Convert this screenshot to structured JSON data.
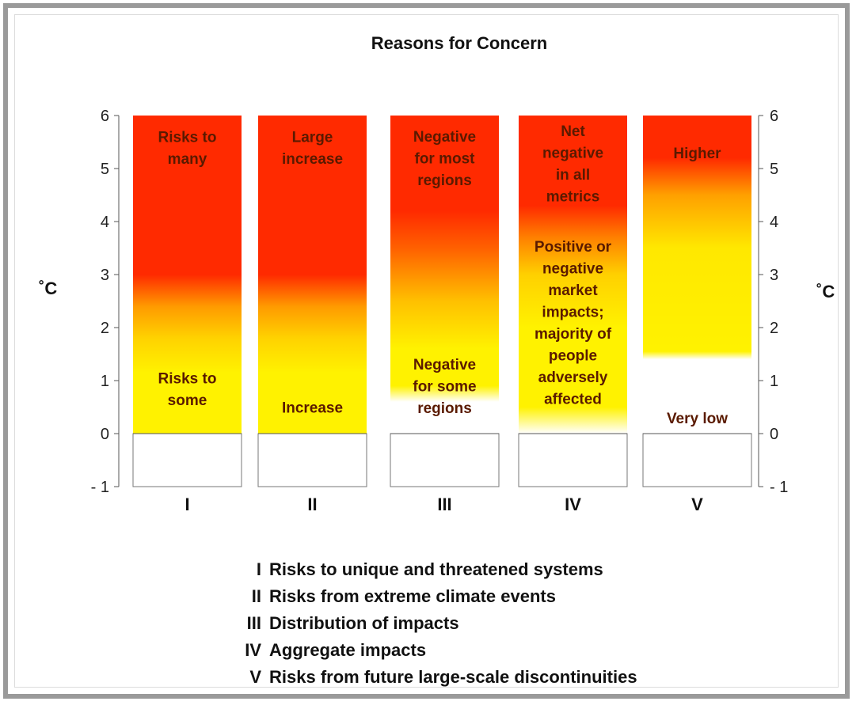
{
  "chart_data": {
    "type": "table",
    "title": "Reasons for Concern",
    "ylabel_left": "˚C",
    "ylabel_right": "˚C",
    "ylim": [
      -1,
      6
    ],
    "yticks": [
      -1,
      0,
      1,
      2,
      3,
      4,
      5,
      6
    ],
    "ytick_labels": [
      "- 1",
      "0",
      "1",
      "2",
      "3",
      "4",
      "5",
      "6"
    ],
    "columns": [
      {
        "id": "I",
        "legend": "Risks to unique and threatened systems",
        "gradient": [
          {
            "t": 0,
            "color": "#fff200"
          },
          {
            "t": 1.15,
            "color": "#fff200"
          },
          {
            "t": 1.8,
            "color": "#ffd200"
          },
          {
            "t": 2.4,
            "color": "#ff9a00"
          },
          {
            "t": 3.0,
            "color": "#ff2a00"
          },
          {
            "t": 6,
            "color": "#ff2a00"
          }
        ],
        "labels": [
          {
            "lines": [
              "Risks to",
              "many"
            ],
            "y": 5.4
          },
          {
            "lines": [
              "Risks to",
              "some"
            ],
            "y": 0.85
          }
        ]
      },
      {
        "id": "II",
        "legend": "Risks from extreme climate events",
        "gradient": [
          {
            "t": 0,
            "color": "#fff200"
          },
          {
            "t": 1.15,
            "color": "#fff200"
          },
          {
            "t": 1.8,
            "color": "#ffd200"
          },
          {
            "t": 2.4,
            "color": "#ff9a00"
          },
          {
            "t": 3.0,
            "color": "#ff2a00"
          },
          {
            "t": 6,
            "color": "#ff2a00"
          }
        ],
        "labels": [
          {
            "lines": [
              "Large",
              "increase"
            ],
            "y": 5.4
          },
          {
            "lines": [
              "Increase"
            ],
            "y": 0.5
          }
        ]
      },
      {
        "id": "III",
        "legend": "Distribution of impacts",
        "gradient": [
          {
            "t": 0.6,
            "color": "#ffffff"
          },
          {
            "t": 0.9,
            "color": "#fff200"
          },
          {
            "t": 1.6,
            "color": "#fff200"
          },
          {
            "t": 2.5,
            "color": "#ffc000"
          },
          {
            "t": 3.5,
            "color": "#ff6000"
          },
          {
            "t": 4.2,
            "color": "#ff2a00"
          },
          {
            "t": 6,
            "color": "#ff2a00"
          }
        ],
        "labels": [
          {
            "lines": [
              "Negative",
              "for most",
              "regions"
            ],
            "y": 5.2
          },
          {
            "lines": [
              "Negative",
              "for some",
              "regions"
            ],
            "y": 0.9
          }
        ]
      },
      {
        "id": "IV",
        "legend": "Aggregate impacts",
        "gradient": [
          {
            "t": 0,
            "color": "#ffffff"
          },
          {
            "t": 0.5,
            "color": "#fff200"
          },
          {
            "t": 2.0,
            "color": "#fff200"
          },
          {
            "t": 3.0,
            "color": "#ffd000"
          },
          {
            "t": 3.7,
            "color": "#ff8000"
          },
          {
            "t": 4.3,
            "color": "#ff2a00"
          },
          {
            "t": 6,
            "color": "#ff2a00"
          }
        ],
        "labels": [
          {
            "lines": [
              "Net",
              "negative",
              "in all",
              "metrics"
            ],
            "y": 5.1
          },
          {
            "lines": [
              "Positive or",
              "negative",
              "market",
              "impacts;",
              "majority of",
              "people",
              "adversely",
              "affected"
            ],
            "y": 2.1
          }
        ]
      },
      {
        "id": "V",
        "legend": "Risks from future large-scale discontinuities",
        "gradient": [
          {
            "t": 1.4,
            "color": "#ffffff"
          },
          {
            "t": 1.55,
            "color": "#fff200"
          },
          {
            "t": 3.5,
            "color": "#ffe800"
          },
          {
            "t": 4.5,
            "color": "#ffa000"
          },
          {
            "t": 5.2,
            "color": "#ff2a00"
          },
          {
            "t": 6,
            "color": "#ff2a00"
          }
        ],
        "labels": [
          {
            "lines": [
              "Higher"
            ],
            "y": 5.3
          },
          {
            "lines": [
              "Very low"
            ],
            "y": 0.3
          }
        ]
      }
    ]
  }
}
